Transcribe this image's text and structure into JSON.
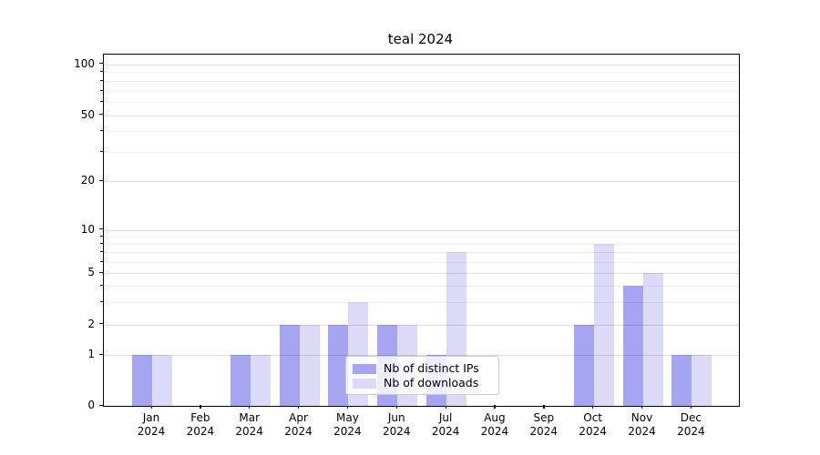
{
  "title": "teal 2024",
  "chart_data": {
    "type": "bar",
    "categories": [
      "Jan 2024",
      "Feb 2024",
      "Mar 2024",
      "Apr 2024",
      "May 2024",
      "Jun 2024",
      "Jul 2024",
      "Aug 2024",
      "Sep 2024",
      "Oct 2024",
      "Nov 2024",
      "Dec 2024"
    ],
    "x_tick_labels": [
      {
        "line1": "Jan",
        "line2": "2024"
      },
      {
        "line1": "Feb",
        "line2": "2024"
      },
      {
        "line1": "Mar",
        "line2": "2024"
      },
      {
        "line1": "Apr",
        "line2": "2024"
      },
      {
        "line1": "May",
        "line2": "2024"
      },
      {
        "line1": "Jun",
        "line2": "2024"
      },
      {
        "line1": "Jul",
        "line2": "2024"
      },
      {
        "line1": "Aug",
        "line2": "2024"
      },
      {
        "line1": "Sep",
        "line2": "2024"
      },
      {
        "line1": "Oct",
        "line2": "2024"
      },
      {
        "line1": "Nov",
        "line2": "2024"
      },
      {
        "line1": "Dec",
        "line2": "2024"
      }
    ],
    "series": [
      {
        "name": "Nb of distinct IPs",
        "color": "#a5a5f2",
        "values": [
          1,
          0,
          1,
          2,
          2,
          2,
          1,
          0,
          0,
          2,
          4,
          1
        ]
      },
      {
        "name": "Nb of downloads",
        "color": "#dbdbf8",
        "values": [
          1,
          0,
          1,
          2,
          3,
          2,
          7,
          0,
          0,
          8,
          5,
          1
        ]
      }
    ],
    "y_axis": {
      "scale": "symlog",
      "tick_values": [
        0,
        1,
        2,
        5,
        10,
        20,
        50,
        100
      ],
      "tick_labels": [
        "0",
        "1",
        "2",
        "5",
        "10",
        "20",
        "50",
        "100"
      ],
      "minor_tick_values": [
        3,
        4,
        6,
        7,
        8,
        9,
        30,
        40,
        60,
        70,
        80,
        90
      ]
    },
    "title": "teal 2024",
    "xlabel": "",
    "ylabel": "",
    "ylim": [
      0,
      110
    ],
    "grid": "horizontal",
    "legend_position": "lower center inside"
  }
}
